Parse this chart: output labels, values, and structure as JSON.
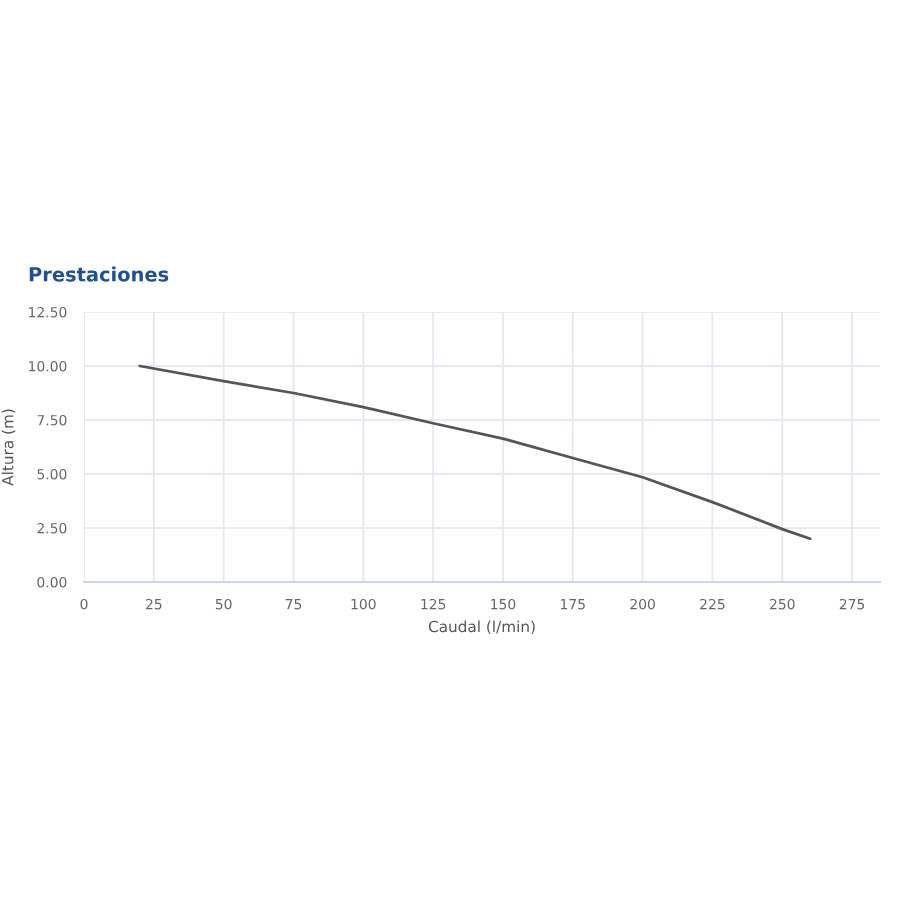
{
  "chart_data": {
    "type": "line",
    "title": "Prestaciones",
    "xlabel": "Caudal (l/min)",
    "ylabel": "Altura (m)",
    "x": [
      20,
      50,
      75,
      100,
      125,
      150,
      175,
      200,
      225,
      250,
      260
    ],
    "series": [
      {
        "color": "#555555",
        "values": [
          10.0,
          9.3,
          8.75,
          8.1,
          7.35,
          6.64,
          5.74,
          4.85,
          3.7,
          2.45,
          2.0
        ]
      }
    ],
    "xlim": [
      0,
      285
    ],
    "xticks": [
      0,
      25,
      50,
      75,
      100,
      125,
      150,
      175,
      200,
      225,
      250,
      275
    ],
    "ylim": [
      0,
      12.5
    ],
    "yticks": [
      {
        "value": 0,
        "label": "0.00"
      },
      {
        "value": 2.5,
        "label": "2.50"
      },
      {
        "value": 5,
        "label": "5.00"
      },
      {
        "value": 7.5,
        "label": "7.50"
      },
      {
        "value": 10,
        "label": "10.00"
      },
      {
        "value": 12.5,
        "label": "12.50"
      }
    ],
    "grid": true,
    "marker": "none",
    "line_style": "solid"
  }
}
